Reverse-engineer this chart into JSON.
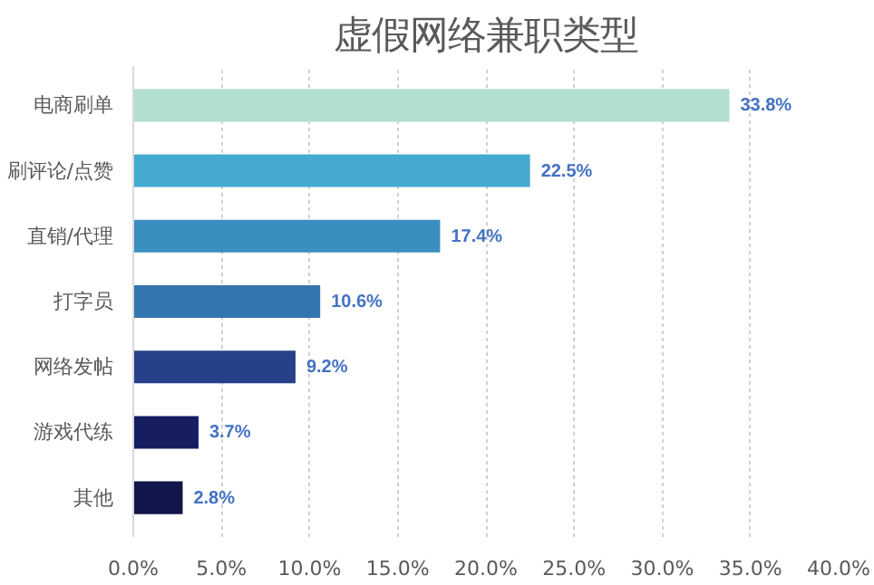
{
  "chart_data": {
    "type": "bar",
    "orientation": "horizontal",
    "title": "虚假网络兼职类型",
    "categories": [
      "电商刷单",
      "刷评论/点赞",
      "直销/代理",
      "打字员",
      "网络发帖",
      "游戏代练",
      "其他"
    ],
    "values": [
      33.8,
      22.5,
      17.4,
      10.6,
      9.2,
      3.7,
      2.8
    ],
    "colors": [
      "#b3dfce",
      "#45aacf",
      "#3b8fbf",
      "#3375ae",
      "#26418a",
      "#161d60",
      "#10154a"
    ],
    "value_labels": [
      "33.8%",
      "22.5%",
      "17.4%",
      "10.6%",
      "9.2%",
      "3.7%",
      "2.8%"
    ],
    "xlim": [
      0,
      40
    ],
    "xticks": [
      {
        "value": 0,
        "label": "0.0%"
      },
      {
        "value": 5,
        "label": "5.0%"
      },
      {
        "value": 10,
        "label": "10.0%"
      },
      {
        "value": 15,
        "label": "15.0%"
      },
      {
        "value": 20,
        "label": "20.0%"
      },
      {
        "value": 25,
        "label": "25.0%"
      },
      {
        "value": 30,
        "label": "30.0%"
      },
      {
        "value": 35,
        "label": "35.0%"
      },
      {
        "value": 40,
        "label": "40.0%"
      }
    ],
    "grid": "x"
  }
}
